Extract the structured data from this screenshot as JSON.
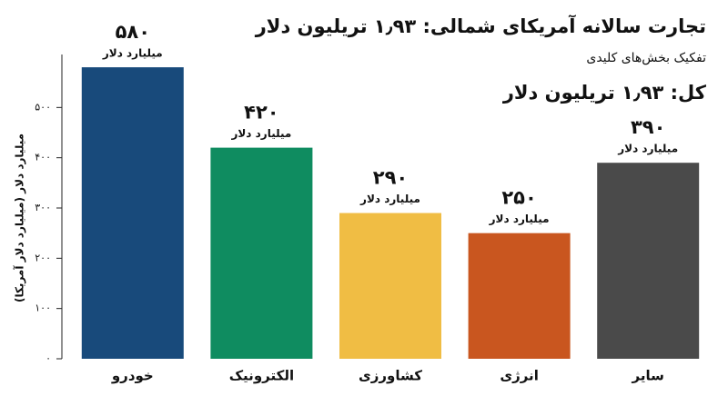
{
  "chart_data": {
    "type": "bar",
    "title": "تجارت سالانه آمریکای شمالی: ۱٫۹۳ تریلیون دلار",
    "subtitle": "تفکیک بخش‌های کلیدی",
    "annotation": "کل: ۱٫۹۳ تریلیون دلار",
    "y_label": "میلیارد دلار (میلیارد دلار آمریکا)",
    "categories": [
      "خودرو",
      "الکترونیک",
      "کشاورزی",
      "انرژی",
      "سایر"
    ],
    "values": [
      580,
      420,
      290,
      250,
      390
    ],
    "value_labels": [
      "۵۸۰",
      "۴۲۰",
      "۲۹۰",
      "۲۵۰",
      "۳۹۰"
    ],
    "value_unit": "میلیارد دلار",
    "colors": [
      "#184a7b",
      "#0f8c60",
      "#f0bd44",
      "#c9561f",
      "#4a4a4a"
    ],
    "ylim": [
      0,
      600
    ],
    "yticks": [
      {
        "value": 0,
        "label": "۰"
      },
      {
        "value": 100,
        "label": "۱۰۰"
      },
      {
        "value": 200,
        "label": "۲۰۰"
      },
      {
        "value": 300,
        "label": "۳۰۰"
      },
      {
        "value": 400,
        "label": "۴۰۰"
      },
      {
        "value": 500,
        "label": "۵۰۰"
      }
    ],
    "grid": false
  }
}
